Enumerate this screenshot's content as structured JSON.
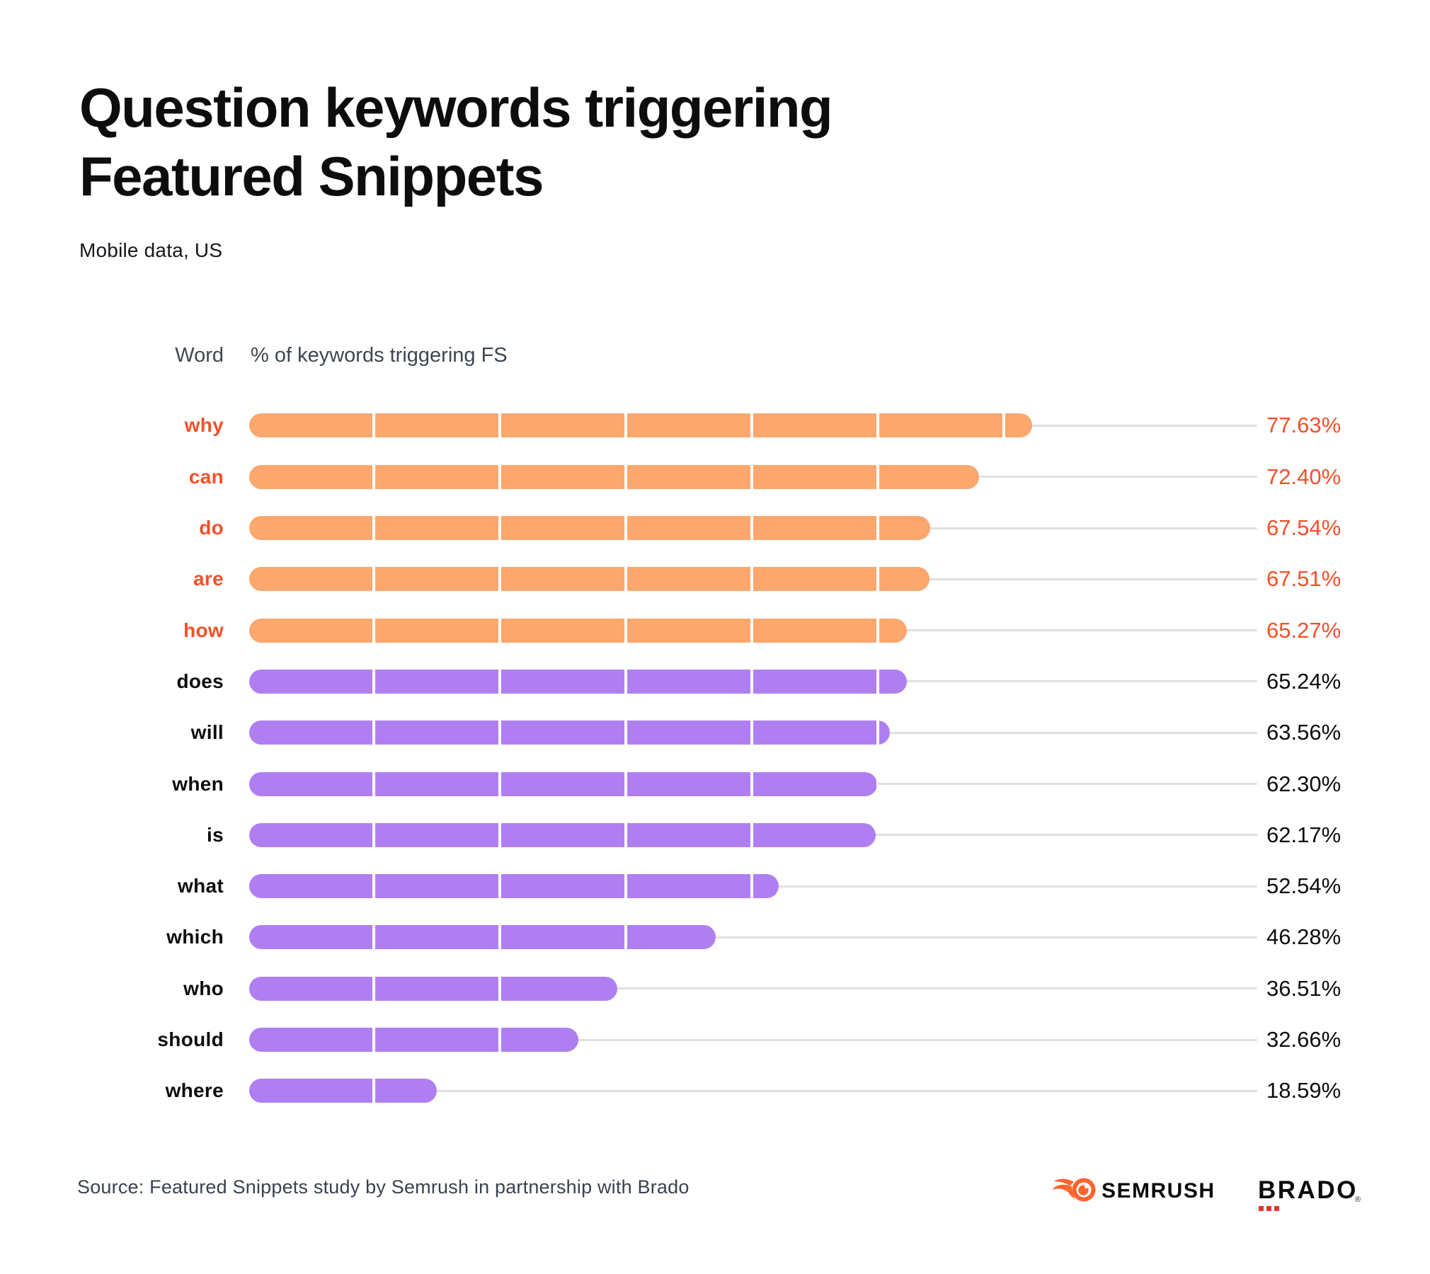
{
  "header": {
    "title_line1": "Question keywords triggering",
    "title_line2": "Featured Snippets",
    "subtitle": "Mobile data, US"
  },
  "columns": {
    "word": "Word",
    "pct": "% of keywords triggering FS"
  },
  "chart_data": {
    "type": "bar",
    "orientation": "horizontal",
    "title": "Question keywords triggering Featured Snippets",
    "subtitle": "Mobile data, US",
    "categories": [
      "why",
      "can",
      "do",
      "are",
      "how",
      "does",
      "will",
      "when",
      "is",
      "what",
      "which",
      "who",
      "should",
      "where"
    ],
    "values": [
      77.63,
      72.4,
      67.54,
      67.51,
      65.27,
      65.24,
      63.56,
      62.3,
      62.17,
      52.54,
      46.28,
      36.51,
      32.66,
      18.59
    ],
    "value_labels": [
      "77.63%",
      "72.40%",
      "67.54%",
      "67.51%",
      "65.27%",
      "65.24%",
      "63.56%",
      "62.30%",
      "62.17%",
      "52.54%",
      "46.28%",
      "36.51%",
      "32.66%",
      "18.59%"
    ],
    "highlight_count": 5,
    "xlim": [
      0,
      100
    ],
    "gridline_step_pct": 12.5,
    "grid": "white vertical stripes inside bars",
    "legend": "none",
    "colors": {
      "highlight_bar": "#FBA76D",
      "bar": "#AF7FF2",
      "highlight_text": "#F4502A",
      "text": "#0d0d0d",
      "track": "#E0E0E0"
    }
  },
  "footer": {
    "source": "Source: Featured Snippets study by Semrush in partnership with Brado",
    "semrush_wordmark": "SEMRUSH",
    "brado_wordmark": "BRADO",
    "brado_registered": "®",
    "brand_colors": {
      "semrush_orange": "#FF642D",
      "brado_red": "#E5342B"
    }
  }
}
